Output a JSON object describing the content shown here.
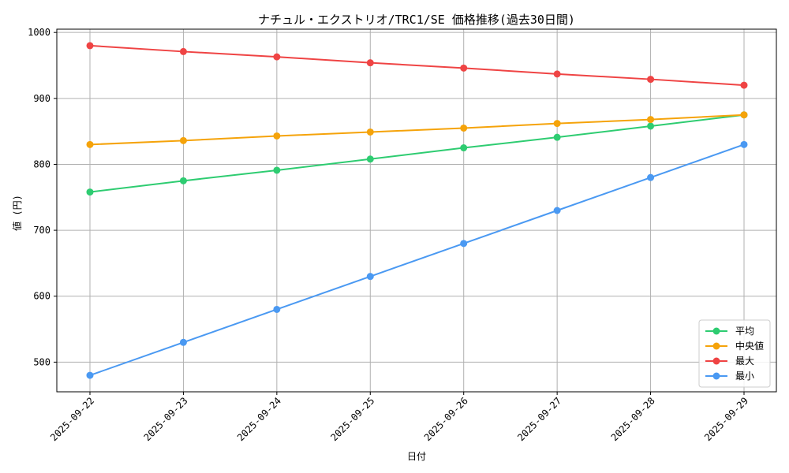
{
  "chart_data": {
    "type": "line",
    "title": "ナチュル・エクストリオ/TRC1/SE 価格推移(過去30日間)",
    "xlabel": "日付",
    "ylabel": "値 (円)",
    "ylim": [
      455,
      1005
    ],
    "yticks": [
      500,
      600,
      700,
      800,
      900,
      1000
    ],
    "grid": true,
    "legend_position": "bottom-right",
    "categories": [
      "2025-09-22",
      "2025-09-23",
      "2025-09-24",
      "2025-09-25",
      "2025-09-26",
      "2025-09-27",
      "2025-09-28",
      "2025-09-29"
    ],
    "series": [
      {
        "name": "平均",
        "color": "#2ecc71",
        "values": [
          758,
          775,
          791,
          808,
          825,
          841,
          858,
          875
        ]
      },
      {
        "name": " 中央値",
        "color": "#f5a30a",
        "values": [
          830,
          836,
          843,
          849,
          855,
          862,
          868,
          875
        ]
      },
      {
        "name": "最大",
        "color": "#ef4444",
        "values": [
          980,
          971,
          963,
          954,
          946,
          937,
          929,
          920
        ]
      },
      {
        "name": "最小",
        "color": "#4a99f2",
        "values": [
          480,
          530,
          580,
          630,
          680,
          730,
          780,
          830
        ]
      }
    ]
  }
}
